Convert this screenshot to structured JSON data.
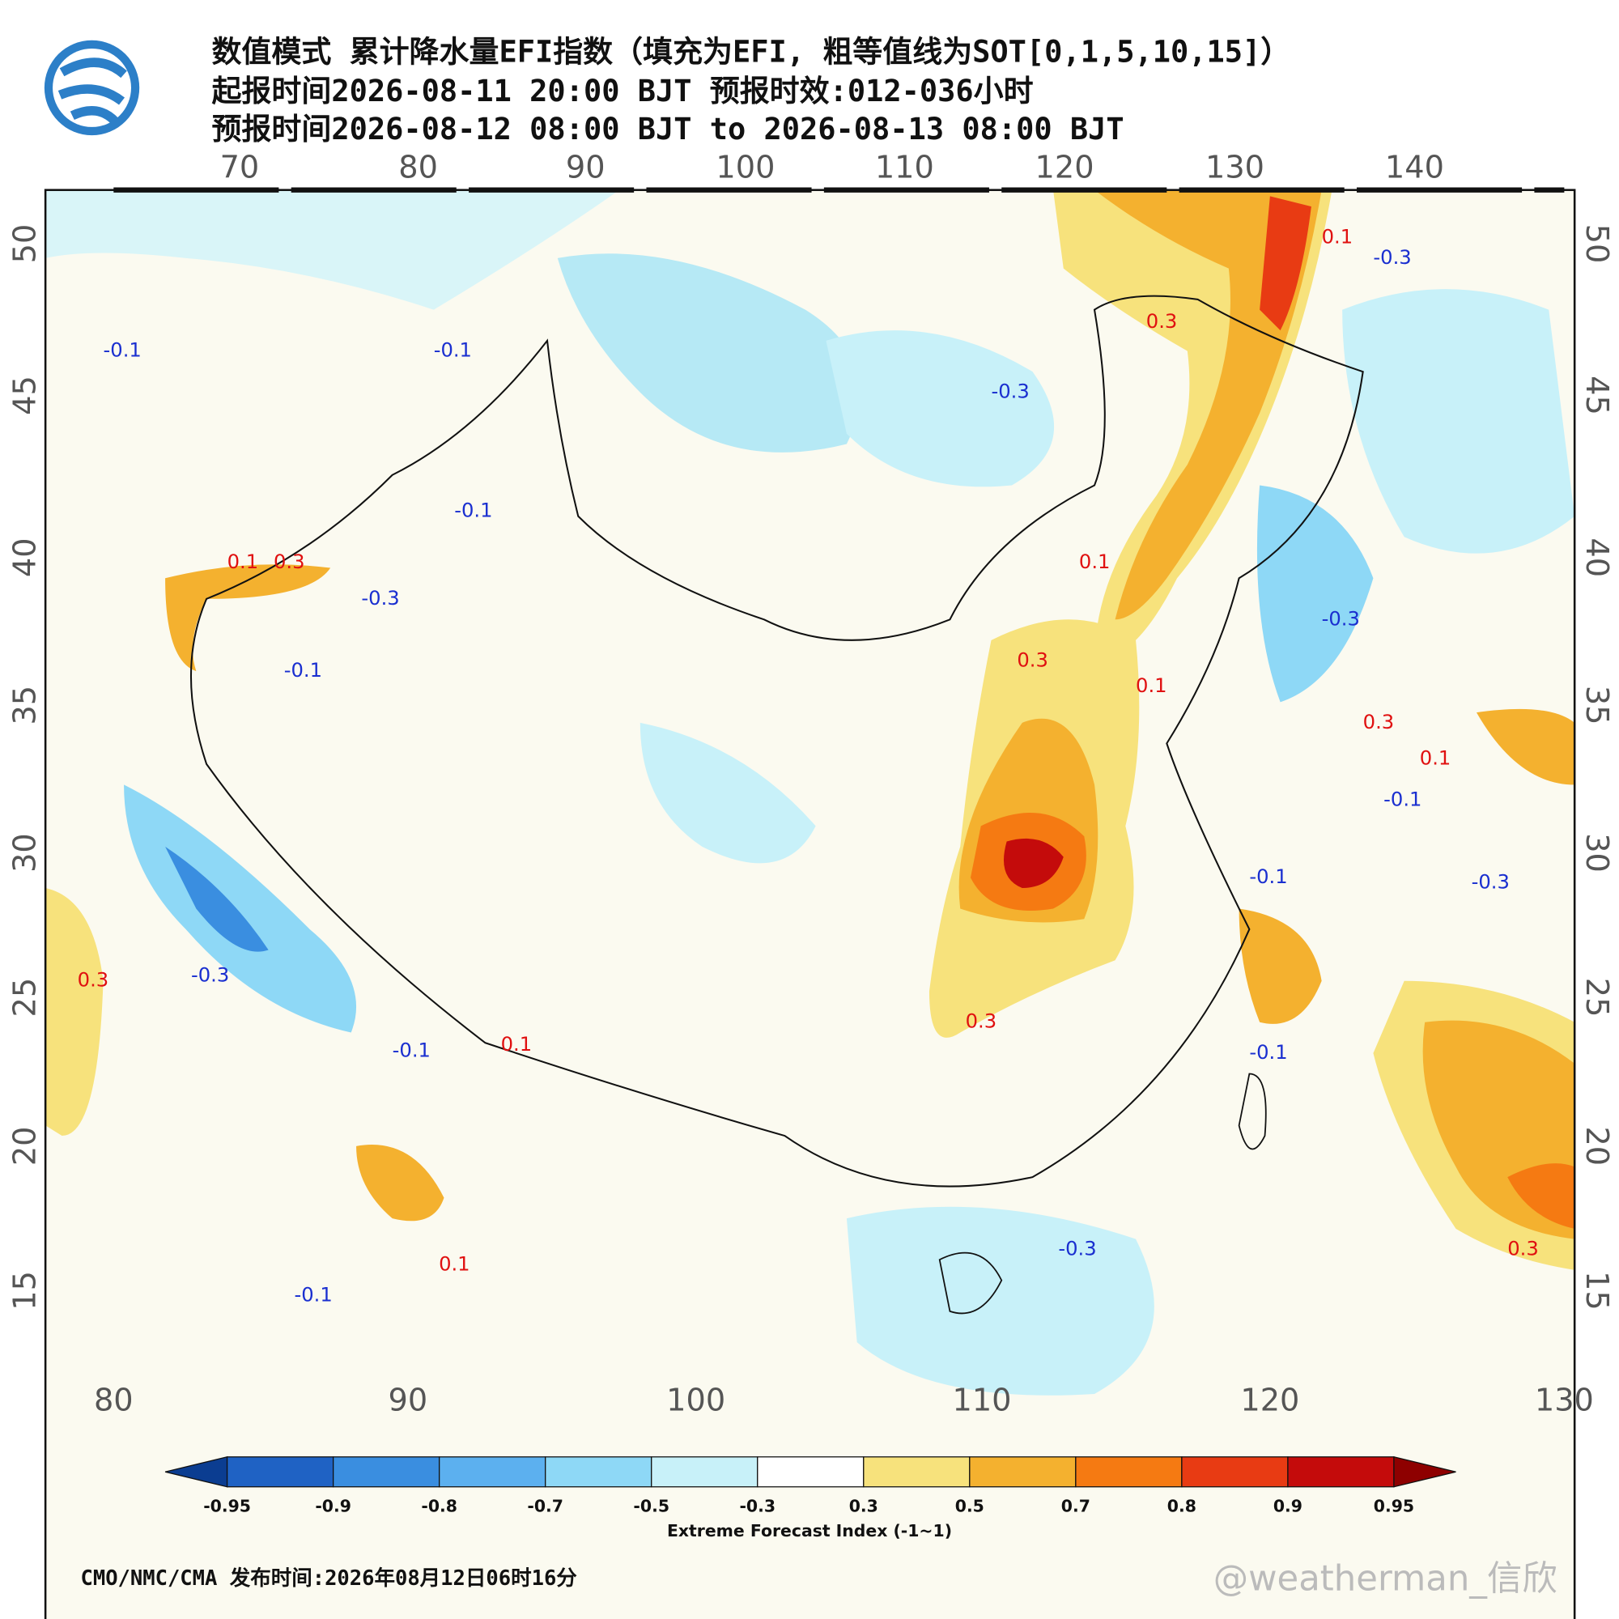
{
  "header": {
    "lines": [
      "数值模式 累计降水量EFI指数（填充为EFI, 粗等值线为SOT[0,1,5,10,15]）",
      "起报时间2026-08-11 20:00 BJT 预报时效:012-036小时",
      "预报时间2026-08-12 08:00 BJT to 2026-08-13 08:00 BJT"
    ]
  },
  "map": {
    "top_lon_labels": [
      70,
      80,
      90,
      100,
      110,
      120,
      130,
      140
    ],
    "bottom_lon_labels": [
      80,
      90,
      100,
      110,
      120,
      130
    ],
    "left_lat_labels": [
      50,
      45,
      40,
      35,
      30,
      25,
      20,
      15
    ],
    "right_lat_labels": [
      50,
      45,
      40,
      35,
      30,
      25,
      20,
      15
    ],
    "contour_labels": [
      "-0.1",
      "-0.1",
      "-0.3",
      "0.3",
      "0.1",
      "-0.3",
      "-0.1",
      "0.1",
      "0.3",
      "-0.3",
      "-0.1",
      "0.1",
      "0.3",
      "0.1",
      "-0.3",
      "0.3",
      "-0.1",
      "0.1",
      "0.3",
      "0.3",
      "-0.1",
      "-0.3",
      "-0.1",
      "-0.1",
      "0.1",
      "0.3",
      "-0.1",
      "0.1",
      "-0.3",
      "-0.3"
    ]
  },
  "colorbar": {
    "levels": [
      -0.95,
      -0.9,
      -0.8,
      -0.7,
      -0.5,
      -0.3,
      0.3,
      0.5,
      0.7,
      0.8,
      0.9,
      0.95
    ],
    "colors": [
      "#0b3d91",
      "#1f62c4",
      "#3a8ee0",
      "#5cb0ef",
      "#8ed8f6",
      "#c8f1f9",
      "#ffffff",
      "#f7e27c",
      "#f4b12f",
      "#f57a12",
      "#e83b13",
      "#c40b0b",
      "#8e0000"
    ],
    "title": "Extreme Forecast Index (-1~1)"
  },
  "footer": {
    "source": "CMO/NMC/CMA 发布时间:2026年08月12日06时16分",
    "watermark": "@weatherman_信欣"
  }
}
